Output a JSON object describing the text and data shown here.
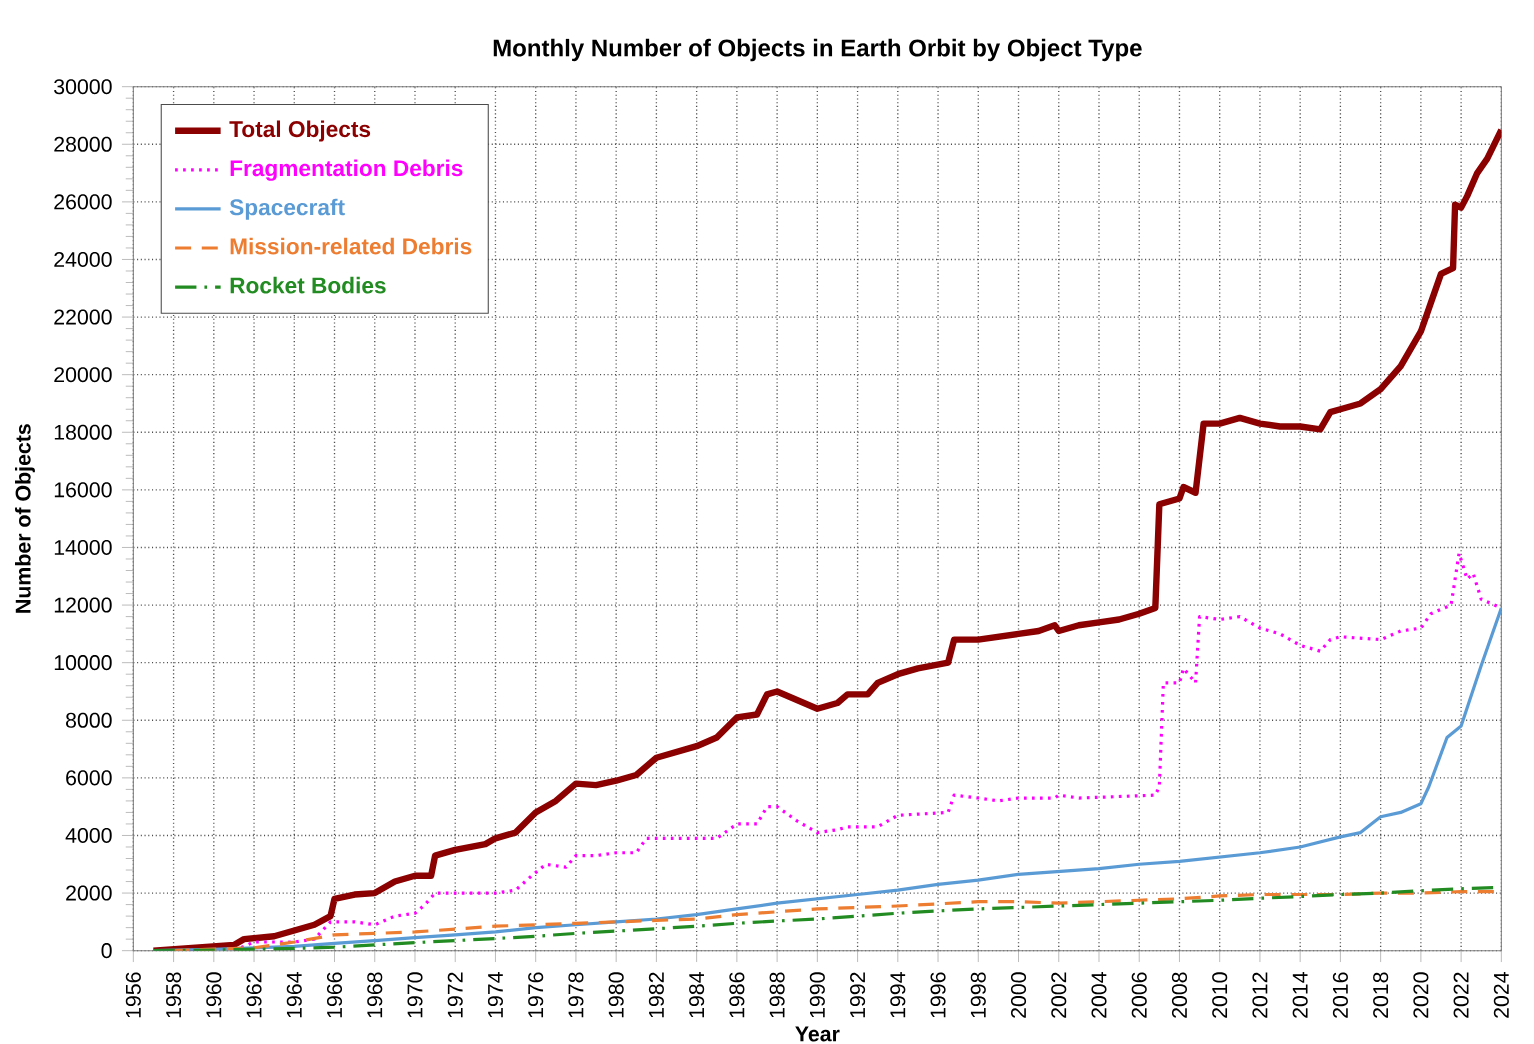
{
  "chart_data": {
    "type": "line",
    "title": "Monthly Number of Objects in Earth Orbit by Object Type",
    "xlabel": "Year",
    "ylabel": "Number of Objects",
    "xlim": [
      1956,
      2024
    ],
    "xticks": [
      1956,
      1958,
      1960,
      1962,
      1964,
      1966,
      1968,
      1970,
      1972,
      1974,
      1976,
      1978,
      1980,
      1982,
      1984,
      1986,
      1988,
      1990,
      1992,
      1994,
      1996,
      1998,
      2000,
      2002,
      2004,
      2006,
      2008,
      2010,
      2012,
      2014,
      2016,
      2018,
      2020,
      2022,
      2024
    ],
    "ylim": [
      0,
      30000
    ],
    "yticks": [
      0,
      2000,
      4000,
      6000,
      8000,
      10000,
      12000,
      14000,
      16000,
      18000,
      20000,
      22000,
      24000,
      26000,
      28000,
      30000
    ],
    "grid": true,
    "legend": "top left",
    "series": [
      {
        "name": "Total Objects",
        "color": "#8b0000",
        "line_style": "solid",
        "x": [
          1957,
          1961,
          1961.5,
          1963,
          1964,
          1965,
          1965.8,
          1966,
          1967,
          1968,
          1969,
          1970,
          1970.8,
          1971,
          1972,
          1973.5,
          1974,
          1975,
          1976,
          1977,
          1978,
          1979,
          1980,
          1981,
          1982,
          1983,
          1984,
          1985,
          1986,
          1987,
          1987.5,
          1988,
          1989,
          1990,
          1991,
          1991.5,
          1992.5,
          1993,
          1994,
          1995,
          1996.5,
          1996.8,
          1998,
          1999,
          2000,
          2001,
          2001.8,
          2002,
          2003,
          2004,
          2005,
          2006,
          2006.8,
          2007,
          2008,
          2008.2,
          2008.8,
          2009.2,
          2010,
          2011,
          2012,
          2013,
          2014,
          2015,
          2015.5,
          2016,
          2017,
          2018,
          2019,
          2020,
          2020.5,
          2021,
          2021.6,
          2021.7,
          2022,
          2022.3,
          2022.8,
          2023.3,
          2024
        ],
        "values": [
          0,
          200,
          400,
          500,
          700,
          900,
          1200,
          1800,
          1950,
          2000,
          2400,
          2600,
          2600,
          3300,
          3500,
          3700,
          3900,
          4100,
          4800,
          5200,
          5800,
          5750,
          5900,
          6100,
          6700,
          6900,
          7100,
          7400,
          8100,
          8200,
          8900,
          9000,
          8700,
          8400,
          8600,
          8900,
          8900,
          9300,
          9600,
          9800,
          10000,
          10800,
          10800,
          10900,
          11000,
          11100,
          11300,
          11100,
          11300,
          11400,
          11500,
          11700,
          11900,
          15500,
          15700,
          16100,
          15900,
          18300,
          18300,
          18500,
          18300,
          18200,
          18200,
          18100,
          18700,
          18800,
          19000,
          19500,
          20300,
          21500,
          22500,
          23500,
          23700,
          25900,
          25800,
          26200,
          27000,
          27500,
          28500
        ]
      },
      {
        "name": "Fragmentation Debris",
        "color": "#ff00ff",
        "line_style": "dotted",
        "x": [
          1961,
          1962,
          1964,
          1965,
          1965.8,
          1967,
          1968,
          1969,
          1970,
          1970.5,
          1971,
          1972,
          1974,
          1975,
          1975.8,
          1976.5,
          1977.5,
          1978,
          1979,
          1980,
          1981,
          1981.5,
          1984,
          1985,
          1986,
          1987,
          1987.5,
          1988,
          1989,
          1990,
          1991,
          1991.5,
          1993,
          1994,
          1996.5,
          1996.8,
          1998,
          1999,
          2000,
          2001.8,
          2002,
          2003,
          2006.8,
          2007,
          2007.2,
          2008,
          2008.2,
          2008.8,
          2009,
          2010,
          2011,
          2012,
          2013,
          2014,
          2015,
          2015.5,
          2016,
          2018,
          2019,
          2020,
          2020.5,
          2021.5,
          2021.9,
          2022.3,
          2022.6,
          2023,
          2024
        ],
        "values": [
          0,
          300,
          300,
          400,
          1000,
          1000,
          900,
          1200,
          1300,
          1600,
          2000,
          2000,
          2000,
          2100,
          2600,
          3000,
          2900,
          3300,
          3300,
          3400,
          3400,
          3900,
          3900,
          3900,
          4400,
          4400,
          5000,
          5000,
          4500,
          4100,
          4200,
          4300,
          4300,
          4700,
          4800,
          5400,
          5300,
          5200,
          5300,
          5300,
          5400,
          5300,
          5400,
          5700,
          9300,
          9300,
          9800,
          9300,
          11600,
          11500,
          11600,
          11200,
          11000,
          10600,
          10400,
          10800,
          10900,
          10800,
          11100,
          11200,
          11700,
          12000,
          13800,
          12900,
          13100,
          12200,
          11900
        ]
      },
      {
        "name": "Spacecraft",
        "color": "#5b9bd5",
        "line_style": "solid",
        "x": [
          1957,
          1960,
          1962,
          1964,
          1966,
          1968,
          1970,
          1972,
          1974,
          1976,
          1978,
          1980,
          1982,
          1984,
          1986,
          1988,
          1990,
          1992,
          1994,
          1996,
          1998,
          2000,
          2002,
          2004,
          2006,
          2008,
          2010,
          2012,
          2014,
          2016,
          2017,
          2018,
          2019,
          2020,
          2020.4,
          2021.3,
          2022,
          2023,
          2024
        ],
        "values": [
          0,
          50,
          100,
          150,
          250,
          350,
          450,
          550,
          650,
          800,
          900,
          1000,
          1100,
          1250,
          1450,
          1650,
          1800,
          1950,
          2100,
          2300,
          2450,
          2650,
          2750,
          2850,
          3000,
          3100,
          3250,
          3400,
          3600,
          3950,
          4100,
          4650,
          4800,
          5100,
          5700,
          7400,
          7800,
          9900,
          11900
        ]
      },
      {
        "name": "Mission-related Debris",
        "color": "#ed7d31",
        "line_style": "dashed",
        "x": [
          1958,
          1960,
          1962,
          1964,
          1966,
          1968,
          1970,
          1972,
          1974,
          1976,
          1978,
          1980,
          1982,
          1984,
          1986,
          1988,
          1990,
          1994,
          1998,
          2000,
          2002,
          2004,
          2006,
          2008,
          2010,
          2012,
          2014,
          2016,
          2018,
          2020,
          2022,
          2024
        ],
        "values": [
          0,
          50,
          100,
          300,
          550,
          600,
          650,
          750,
          850,
          900,
          950,
          1000,
          1050,
          1100,
          1250,
          1350,
          1450,
          1550,
          1700,
          1700,
          1650,
          1700,
          1750,
          1800,
          1900,
          1950,
          1950,
          1950,
          2000,
          2000,
          2050,
          2050
        ]
      },
      {
        "name": "Rocket Bodies",
        "color": "#228b22",
        "line_style": "dashdot",
        "x": [
          1957,
          1960,
          1962,
          1964,
          1966,
          1968,
          1970,
          1972,
          1974,
          1976,
          1978,
          1980,
          1982,
          1984,
          1986,
          1988,
          1990,
          1992,
          1994,
          1996,
          1998,
          2000,
          2002,
          2004,
          2006,
          2008,
          2010,
          2012,
          2014,
          2016,
          2018,
          2020,
          2022,
          2024
        ],
        "values": [
          0,
          20,
          50,
          80,
          120,
          200,
          280,
          350,
          420,
          500,
          600,
          680,
          760,
          850,
          950,
          1030,
          1100,
          1200,
          1300,
          1380,
          1450,
          1500,
          1550,
          1600,
          1650,
          1700,
          1750,
          1820,
          1880,
          1950,
          2000,
          2080,
          2150,
          2200
        ]
      }
    ]
  }
}
